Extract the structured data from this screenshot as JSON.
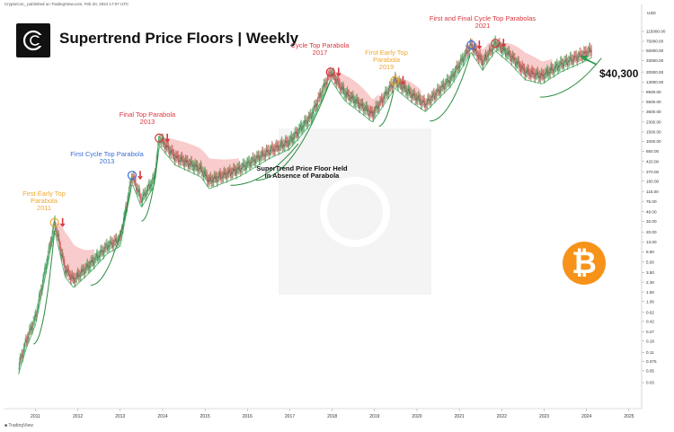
{
  "header": {
    "meta": "CryptoCon_ published on TradingView.com, Feb 20, 2024 17:07 UTC"
  },
  "title": "Supertrend Price Floors | Weekly",
  "footer": {
    "brand": "TradingView"
  },
  "annotations": [
    {
      "text": "First Early Top\nParabola",
      "year": "2011",
      "color": "#f0a830"
    },
    {
      "text": "First Cycle Top Parabola",
      "year": "2013",
      "color": "#3a6fd8"
    },
    {
      "text": "Final Top Parabola",
      "year": "2013",
      "color": "#d9363e"
    },
    {
      "text": "Cycle Top Parabola",
      "year": "2017",
      "color": "#d9363e"
    },
    {
      "text": "First Early Top\nParabola",
      "year": "2019",
      "color": "#f0a830"
    },
    {
      "text": "First and Final Cycle Top Parabolas",
      "year": "2021",
      "color": "#d9363e"
    }
  ],
  "floor_note": {
    "line1": "SuperTrend Price Floor Held",
    "line2": "in Absence of Parabola"
  },
  "price_label": "$40,300",
  "currency_axis": "USD",
  "bitcoin_glyph": "₿",
  "colors": {
    "candle_up": "#22a34a",
    "candle_down": "#d9363e",
    "floor_band": "#f7c7c7",
    "floor_line": "#2b8a3e",
    "bitcoin": "#f7931a"
  },
  "chart_data": {
    "type": "line",
    "x_ticks": [
      "2011",
      "2012",
      "2013",
      "2014",
      "2015",
      "2016",
      "2017",
      "2018",
      "2019",
      "2020",
      "2021",
      "2022",
      "2023",
      "2024",
      "2025"
    ],
    "y_scale": "log",
    "y_ticks": [
      "115000.00",
      "75000.00",
      "50000.00",
      "33000.00",
      "20000.00",
      "13000.00",
      "8500.00",
      "5500.00",
      "3600.00",
      "2300.00",
      "1500.00",
      "1000.00",
      "650.00",
      "420.00",
      "270.00",
      "180.00",
      "115.00",
      "75.00",
      "48.00",
      "32.00",
      "20.00",
      "13.00",
      "8.50",
      "5.50",
      "3.50",
      "2.30",
      "1.50",
      "1.00",
      "0.62",
      "0.42",
      "0.27",
      "0.18",
      "0.11",
      "0.075",
      "0.05",
      "0.03"
    ],
    "series": [
      {
        "values": [
          {
            "x": 2010.6,
            "y": 0.06
          },
          {
            "x": 2010.8,
            "y": 0.2
          },
          {
            "x": 2011.0,
            "y": 0.5
          },
          {
            "x": 2011.2,
            "y": 3
          },
          {
            "x": 2011.45,
            "y": 30
          },
          {
            "x": 2011.7,
            "y": 4
          },
          {
            "x": 2011.9,
            "y": 2.5
          },
          {
            "x": 2012.3,
            "y": 5
          },
          {
            "x": 2012.7,
            "y": 11
          },
          {
            "x": 2013.0,
            "y": 15
          },
          {
            "x": 2013.28,
            "y": 230
          },
          {
            "x": 2013.5,
            "y": 80
          },
          {
            "x": 2013.8,
            "y": 200
          },
          {
            "x": 2013.92,
            "y": 1150
          },
          {
            "x": 2014.3,
            "y": 500
          },
          {
            "x": 2014.9,
            "y": 300
          },
          {
            "x": 2015.1,
            "y": 180
          },
          {
            "x": 2015.8,
            "y": 300
          },
          {
            "x": 2016.5,
            "y": 650
          },
          {
            "x": 2017.0,
            "y": 1000
          },
          {
            "x": 2017.5,
            "y": 3000
          },
          {
            "x": 2017.96,
            "y": 19800
          },
          {
            "x": 2018.3,
            "y": 8000
          },
          {
            "x": 2018.95,
            "y": 3200
          },
          {
            "x": 2019.48,
            "y": 13800
          },
          {
            "x": 2019.9,
            "y": 7200
          },
          {
            "x": 2020.2,
            "y": 5000
          },
          {
            "x": 2020.8,
            "y": 15000
          },
          {
            "x": 2021.28,
            "y": 64000
          },
          {
            "x": 2021.55,
            "y": 30000
          },
          {
            "x": 2021.85,
            "y": 69000
          },
          {
            "x": 2022.2,
            "y": 40000
          },
          {
            "x": 2022.55,
            "y": 20000
          },
          {
            "x": 2022.95,
            "y": 16500
          },
          {
            "x": 2023.4,
            "y": 28000
          },
          {
            "x": 2023.9,
            "y": 42000
          },
          {
            "x": 2024.13,
            "y": 52000
          }
        ]
      }
    ],
    "tops": [
      {
        "x": 2011.45,
        "y": 30
      },
      {
        "x": 2013.28,
        "y": 230
      },
      {
        "x": 2013.92,
        "y": 1150
      },
      {
        "x": 2017.96,
        "y": 19800
      },
      {
        "x": 2019.48,
        "y": 13800
      },
      {
        "x": 2021.28,
        "y": 64000
      },
      {
        "x": 2021.85,
        "y": 69000
      }
    ],
    "current": {
      "x": 2024.13,
      "y": 40300
    }
  }
}
